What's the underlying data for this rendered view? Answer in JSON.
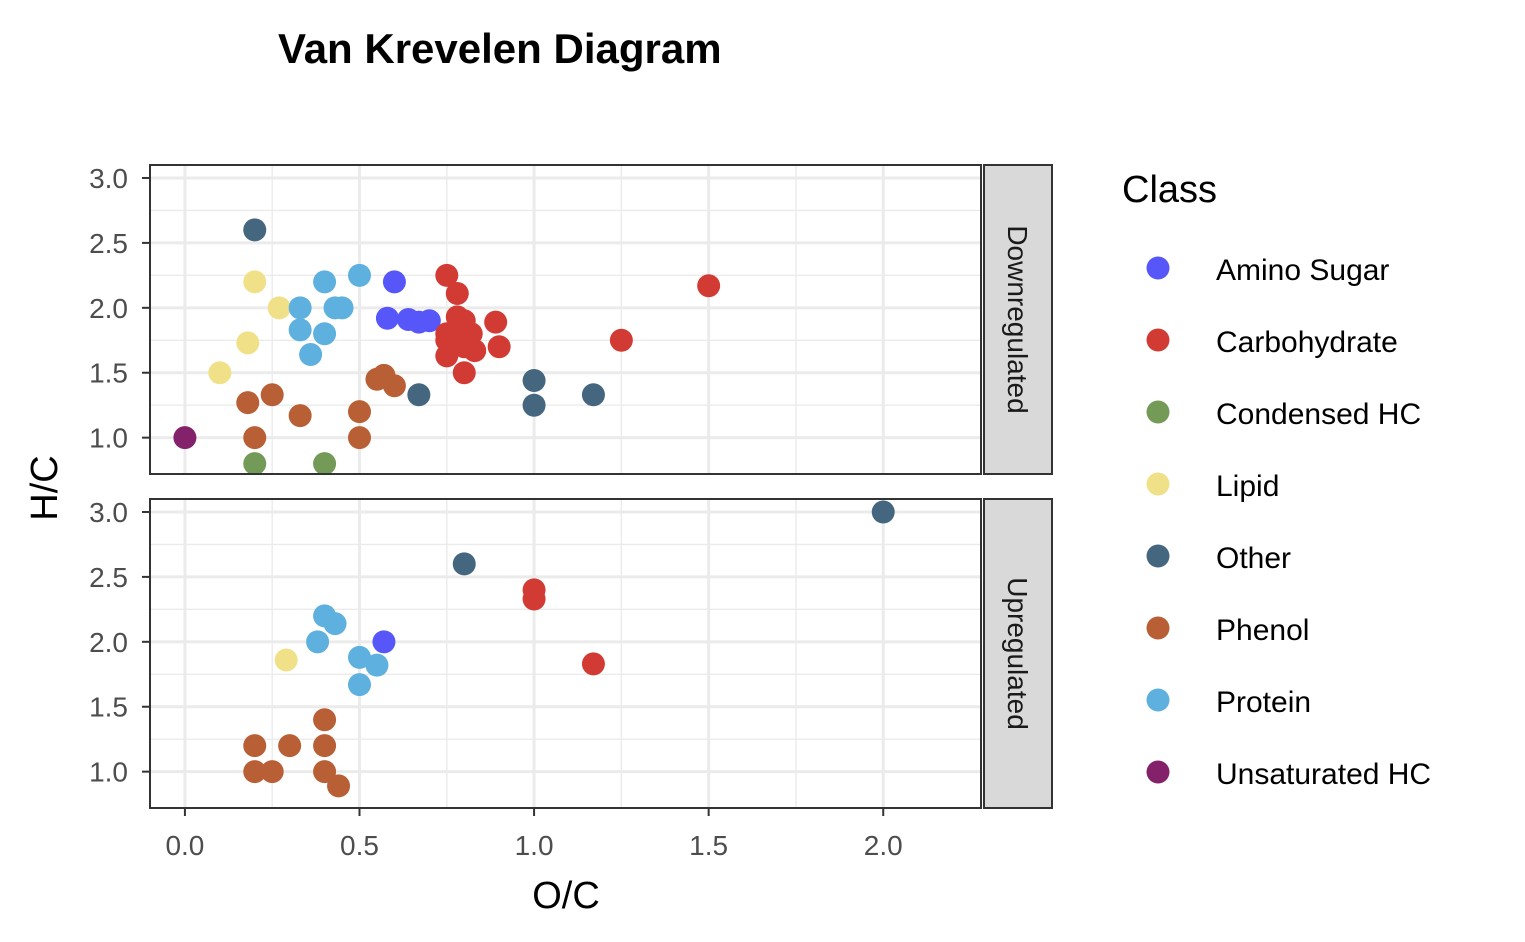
{
  "chart_data": {
    "type": "scatter",
    "title": "Van Krevelen Diagram",
    "xlabel": "O/C",
    "ylabel": "H/C",
    "xlim": [
      -0.1,
      2.28
    ],
    "ylim": [
      0.72,
      3.1
    ],
    "x_ticks": [
      0.0,
      0.5,
      1.0,
      1.5,
      2.0
    ],
    "x_tick_labels": [
      "0.0",
      "0.5",
      "1.0",
      "1.5",
      "2.0"
    ],
    "y_ticks": [
      1.0,
      1.5,
      2.0,
      2.5,
      3.0
    ],
    "y_tick_labels": [
      "1.0",
      "1.5",
      "2.0",
      "2.5",
      "3.0"
    ],
    "grid": true,
    "legend": {
      "title": "Class",
      "position": "right",
      "entries": [
        {
          "name": "Amino Sugar",
          "color": "#5757F9"
        },
        {
          "name": "Carbohydrate",
          "color": "#D23B33"
        },
        {
          "name": "Condensed HC",
          "color": "#739A56"
        },
        {
          "name": "Lipid",
          "color": "#F0E189"
        },
        {
          "name": "Other",
          "color": "#44667F"
        },
        {
          "name": "Phenol",
          "color": "#B95F35"
        },
        {
          "name": "Protein",
          "color": "#5EB0DE"
        },
        {
          "name": "Unsaturated HC",
          "color": "#84216B"
        }
      ]
    },
    "facets": [
      {
        "label": "Downregulated",
        "points": [
          {
            "class": "Unsaturated HC",
            "x": 0.0,
            "y": 1.0
          },
          {
            "class": "Lipid",
            "x": 0.1,
            "y": 1.5
          },
          {
            "class": "Lipid",
            "x": 0.18,
            "y": 1.73
          },
          {
            "class": "Lipid",
            "x": 0.2,
            "y": 2.2
          },
          {
            "class": "Lipid",
            "x": 0.27,
            "y": 2.0
          },
          {
            "class": "Condensed HC",
            "x": 0.2,
            "y": 0.8
          },
          {
            "class": "Condensed HC",
            "x": 0.4,
            "y": 0.8
          },
          {
            "class": "Phenol",
            "x": 0.18,
            "y": 1.27
          },
          {
            "class": "Phenol",
            "x": 0.2,
            "y": 1.0
          },
          {
            "class": "Phenol",
            "x": 0.25,
            "y": 1.33
          },
          {
            "class": "Phenol",
            "x": 0.33,
            "y": 1.17
          },
          {
            "class": "Phenol",
            "x": 0.5,
            "y": 1.2
          },
          {
            "class": "Phenol",
            "x": 0.5,
            "y": 1.0
          },
          {
            "class": "Phenol",
            "x": 0.55,
            "y": 1.45
          },
          {
            "class": "Phenol",
            "x": 0.57,
            "y": 1.48
          },
          {
            "class": "Phenol",
            "x": 0.6,
            "y": 1.4
          },
          {
            "class": "Other",
            "x": 0.2,
            "y": 2.6
          },
          {
            "class": "Other",
            "x": 0.67,
            "y": 1.33
          },
          {
            "class": "Other",
            "x": 1.0,
            "y": 1.44
          },
          {
            "class": "Other",
            "x": 1.0,
            "y": 1.25
          },
          {
            "class": "Other",
            "x": 1.17,
            "y": 1.33
          },
          {
            "class": "Protein",
            "x": 0.33,
            "y": 2.0
          },
          {
            "class": "Protein",
            "x": 0.33,
            "y": 1.83
          },
          {
            "class": "Protein",
            "x": 0.36,
            "y": 1.64
          },
          {
            "class": "Protein",
            "x": 0.4,
            "y": 2.2
          },
          {
            "class": "Protein",
            "x": 0.4,
            "y": 1.8
          },
          {
            "class": "Protein",
            "x": 0.43,
            "y": 2.0
          },
          {
            "class": "Protein",
            "x": 0.45,
            "y": 2.0
          },
          {
            "class": "Protein",
            "x": 0.5,
            "y": 2.25
          },
          {
            "class": "Amino Sugar",
            "x": 0.58,
            "y": 1.92
          },
          {
            "class": "Amino Sugar",
            "x": 0.6,
            "y": 2.2
          },
          {
            "class": "Amino Sugar",
            "x": 0.64,
            "y": 1.91
          },
          {
            "class": "Amino Sugar",
            "x": 0.67,
            "y": 1.89
          },
          {
            "class": "Amino Sugar",
            "x": 0.7,
            "y": 1.9
          },
          {
            "class": "Carbohydrate",
            "x": 0.75,
            "y": 2.25
          },
          {
            "class": "Carbohydrate",
            "x": 0.78,
            "y": 2.11
          },
          {
            "class": "Carbohydrate",
            "x": 0.75,
            "y": 1.8
          },
          {
            "class": "Carbohydrate",
            "x": 0.75,
            "y": 1.75
          },
          {
            "class": "Carbohydrate",
            "x": 0.75,
            "y": 1.63
          },
          {
            "class": "Carbohydrate",
            "x": 0.78,
            "y": 1.93
          },
          {
            "class": "Carbohydrate",
            "x": 0.78,
            "y": 1.78
          },
          {
            "class": "Carbohydrate",
            "x": 0.8,
            "y": 1.9
          },
          {
            "class": "Carbohydrate",
            "x": 0.8,
            "y": 1.7
          },
          {
            "class": "Carbohydrate",
            "x": 0.8,
            "y": 1.5
          },
          {
            "class": "Carbohydrate",
            "x": 0.82,
            "y": 1.8
          },
          {
            "class": "Carbohydrate",
            "x": 0.83,
            "y": 1.67
          },
          {
            "class": "Carbohydrate",
            "x": 0.89,
            "y": 1.89
          },
          {
            "class": "Carbohydrate",
            "x": 0.9,
            "y": 1.7
          },
          {
            "class": "Carbohydrate",
            "x": 1.25,
            "y": 1.75
          },
          {
            "class": "Carbohydrate",
            "x": 1.5,
            "y": 2.17
          }
        ]
      },
      {
        "label": "Upregulated",
        "points": [
          {
            "class": "Lipid",
            "x": 0.29,
            "y": 1.86
          },
          {
            "class": "Phenol",
            "x": 0.2,
            "y": 1.2
          },
          {
            "class": "Phenol",
            "x": 0.2,
            "y": 1.0
          },
          {
            "class": "Phenol",
            "x": 0.25,
            "y": 1.0
          },
          {
            "class": "Phenol",
            "x": 0.3,
            "y": 1.2
          },
          {
            "class": "Phenol",
            "x": 0.4,
            "y": 1.4
          },
          {
            "class": "Phenol",
            "x": 0.4,
            "y": 1.2
          },
          {
            "class": "Phenol",
            "x": 0.4,
            "y": 1.0
          },
          {
            "class": "Phenol",
            "x": 0.44,
            "y": 0.89
          },
          {
            "class": "Protein",
            "x": 0.38,
            "y": 2.0
          },
          {
            "class": "Protein",
            "x": 0.4,
            "y": 2.2
          },
          {
            "class": "Protein",
            "x": 0.43,
            "y": 2.14
          },
          {
            "class": "Protein",
            "x": 0.5,
            "y": 1.88
          },
          {
            "class": "Protein",
            "x": 0.55,
            "y": 1.82
          },
          {
            "class": "Protein",
            "x": 0.5,
            "y": 1.67
          },
          {
            "class": "Amino Sugar",
            "x": 0.57,
            "y": 2.0
          },
          {
            "class": "Other",
            "x": 0.8,
            "y": 2.6
          },
          {
            "class": "Other",
            "x": 2.0,
            "y": 3.0
          },
          {
            "class": "Carbohydrate",
            "x": 1.0,
            "y": 2.4
          },
          {
            "class": "Carbohydrate",
            "x": 1.0,
            "y": 2.33
          },
          {
            "class": "Carbohydrate",
            "x": 1.17,
            "y": 1.83
          }
        ]
      }
    ]
  }
}
